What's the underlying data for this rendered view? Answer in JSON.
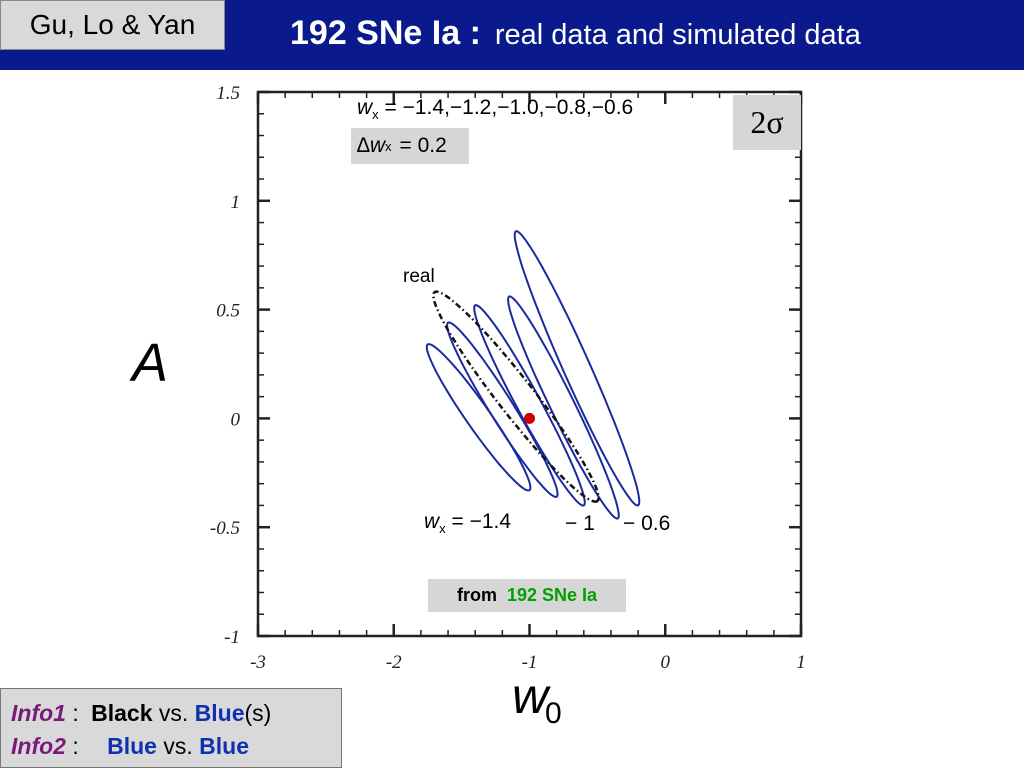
{
  "header": {
    "authors": "Gu, Lo & Yan",
    "title_bold": "192 SNe Ia :",
    "title_rest": "real data and simulated data"
  },
  "annotations": {
    "wx_list_prefix": "w",
    "wx_sub": "x",
    "wx_list_values": "= −1.4,−1.2,−1.0,−0.8,−0.6",
    "delta_prefix": "∆w",
    "delta_value": "= 0.2",
    "sigma_label": "2σ",
    "real_label": "real",
    "wx_bottom_prefix": "w",
    "wx_bottom_value": "= −1.4",
    "label_m1": "− 1",
    "label_m06": "− 0.6",
    "source_from": "from",
    "source_name": "192 SNe Ia",
    "big_y": "A",
    "big_x_letter": "w",
    "big_x_sub": "0"
  },
  "info": {
    "info1_label": "Info1",
    "info1_sep": ":",
    "info1_black": "Black",
    "info1_vs": "vs.",
    "info1_blue": "Blue",
    "info1_s": "(s)",
    "info2_label": "Info2",
    "info2_sep": ":",
    "info2_blue1": "Blue",
    "info2_vs": "vs.",
    "info2_blue2": "Blue"
  },
  "colors": {
    "title_bar": "#0a1a8c",
    "contour_blue": "#1a2aa0",
    "real_marker": "#cc0000",
    "source_green": "#00a000",
    "info_purple": "#7a1a7a"
  },
  "chart_data": {
    "type": "contour",
    "xlim": [
      -3,
      1
    ],
    "ylim": [
      -1,
      1.5
    ],
    "x_ticks": [
      -3,
      -2,
      -1,
      0,
      1
    ],
    "x_tick_labels": [
      "-3",
      "-2",
      "-1",
      "0",
      "1"
    ],
    "y_ticks": [
      -1,
      -0.5,
      0,
      0.5,
      1,
      1.5
    ],
    "y_tick_labels": [
      "-1",
      "-0.5",
      "0",
      "0.5",
      "1",
      "1.5"
    ],
    "minor_x_step": 0.2,
    "minor_y_step": 0.1,
    "real_point": {
      "x": -1.0,
      "y": 0.0
    },
    "simulated_contours": [
      {
        "wx": -1.4,
        "w0_range": [
          -1.75,
          -1.0
        ],
        "A_range": [
          -0.33,
          0.34
        ]
      },
      {
        "wx": -1.2,
        "w0_range": [
          -1.6,
          -0.8
        ],
        "A_range": [
          -0.36,
          0.44
        ]
      },
      {
        "wx": -1.0,
        "w0_range": [
          -1.4,
          -0.6
        ],
        "A_range": [
          -0.4,
          0.52
        ]
      },
      {
        "wx": -0.8,
        "w0_range": [
          -1.15,
          -0.35
        ],
        "A_range": [
          -0.46,
          0.56
        ]
      },
      {
        "wx": -0.6,
        "w0_range": [
          -1.1,
          -0.2
        ],
        "A_range": [
          -0.4,
          0.86
        ]
      }
    ],
    "real_contour": {
      "w0_range": [
        -1.7,
        -0.5
      ],
      "A_range": [
        -0.38,
        0.58
      ]
    }
  }
}
